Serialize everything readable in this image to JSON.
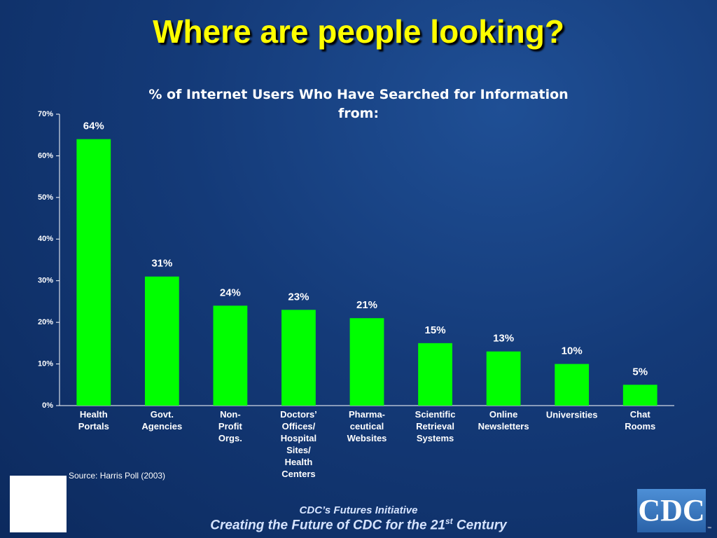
{
  "header": {
    "title": "Where are people looking?"
  },
  "chart_data": {
    "type": "bar",
    "title": "% of Internet Users Who Have Searched for Information from:",
    "categories": [
      "Health\nPortals",
      "Govt.\nAgencies",
      "Non-\nProfit\nOrgs.",
      "Doctors’\nOffices/\nHospital\nSites/\nHealth\nCenters",
      "Pharma-\nceutical\nWebsites",
      "Scientific\nRetrieval\nSystems",
      "Online\nNewsletters",
      "Universities",
      "Chat\nRooms"
    ],
    "values": [
      64,
      31,
      24,
      23,
      21,
      15,
      13,
      10,
      5
    ],
    "value_labels": [
      "64%",
      "31%",
      "24%",
      "23%",
      "21%",
      "15%",
      "13%",
      "10%",
      "5%"
    ],
    "color": "#00ff00",
    "ylim": [
      0,
      70
    ],
    "yticks": [
      {
        "value": 0,
        "label": "0%"
      },
      {
        "value": 10,
        "label": "10%"
      },
      {
        "value": 20,
        "label": "20%"
      },
      {
        "value": 30,
        "label": "30%"
      },
      {
        "value": 40,
        "label": "40%"
      },
      {
        "value": 50,
        "label": "50%"
      },
      {
        "value": 60,
        "label": "60%"
      },
      {
        "value": 70,
        "label": "70%"
      }
    ],
    "grid": false,
    "source": "Source: Harris Poll (2003)"
  },
  "footer": {
    "line1": "CDC’s Futures Initiative",
    "line2_before": "Creating the Future of CDC for the 21",
    "line2_superscript": "st",
    "line2_after": " Century"
  },
  "logo": {
    "text": "CDC",
    "mark": "™"
  }
}
